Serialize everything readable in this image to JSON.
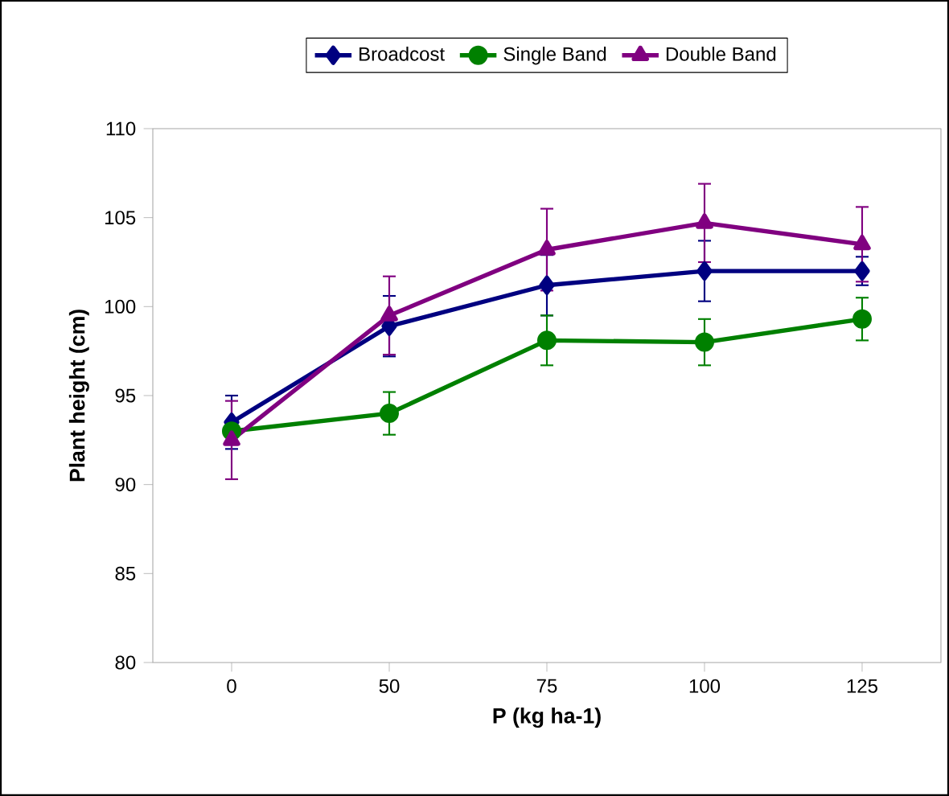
{
  "chart_data": {
    "type": "line",
    "xlabel": "P (kg ha-1)",
    "ylabel": "Plant height (cm)",
    "categories": [
      "0",
      "50",
      "75",
      "100",
      "125"
    ],
    "ylim": [
      80,
      110
    ],
    "yticks": [
      80,
      85,
      90,
      95,
      100,
      105,
      110
    ],
    "legend": "top",
    "grid": false,
    "line_style": "solid",
    "series": [
      {
        "name": "Broadcost",
        "color": "#000080",
        "marker": "diamond",
        "values": [
          93.5,
          98.9,
          101.2,
          102.0,
          102.0
        ],
        "errors": [
          1.5,
          1.7,
          1.7,
          1.7,
          0.8
        ]
      },
      {
        "name": "Single Band",
        "color": "#008000",
        "marker": "circle",
        "values": [
          93.0,
          94.0,
          98.1,
          98.0,
          99.3
        ],
        "errors": [
          null,
          1.2,
          1.4,
          1.3,
          1.2
        ]
      },
      {
        "name": "Double Band",
        "color": "#800080",
        "marker": "triangle",
        "values": [
          92.5,
          99.5,
          103.2,
          104.7,
          103.5
        ],
        "errors": [
          2.2,
          2.2,
          2.3,
          2.2,
          2.1
        ]
      }
    ]
  }
}
